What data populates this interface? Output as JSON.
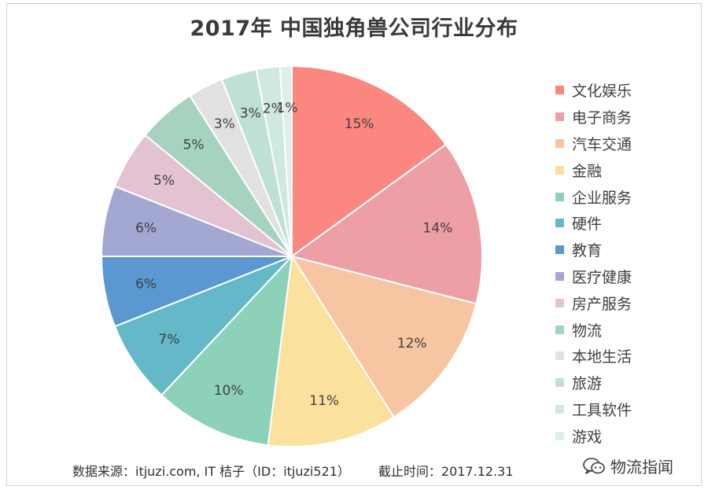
{
  "chart_data": {
    "type": "pie",
    "title": "2017年 中国独角兽公司行业分布",
    "categories": [
      "文化娱乐",
      "电子商务",
      "汽车交通",
      "金融",
      "企业服务",
      "硬件",
      "教育",
      "医疗健康",
      "房产服务",
      "物流",
      "本地生活",
      "旅游",
      "工具软件",
      "游戏"
    ],
    "values": [
      15,
      14,
      12,
      11,
      10,
      7,
      6,
      6,
      5,
      5,
      3,
      3,
      2,
      1
    ],
    "data_labels": [
      "15%",
      "14%",
      "12%",
      "11%",
      "10%",
      "7%",
      "6%",
      "6%",
      "5%",
      "5%",
      "3%",
      "3%",
      "2%",
      "1%"
    ],
    "colors": [
      "#fb8781",
      "#ee9ea5",
      "#f8c5a2",
      "#fbe09e",
      "#8ed1b9",
      "#64b8c8",
      "#5b98d2",
      "#a3a8d3",
      "#e3c3d1",
      "#a6d3c0",
      "#e1e1e1",
      "#bfe0d5",
      "#cfe8e2",
      "#dcefe9"
    ],
    "legend_position": "right"
  },
  "footer": {
    "source": "数据来源：itjuzi.com, IT 桔子（ID：itjuzi521）",
    "cutoff": "截止时间：2017.12.31"
  },
  "watermark": {
    "text": "物流指闻",
    "icon": "wechat-icon"
  }
}
